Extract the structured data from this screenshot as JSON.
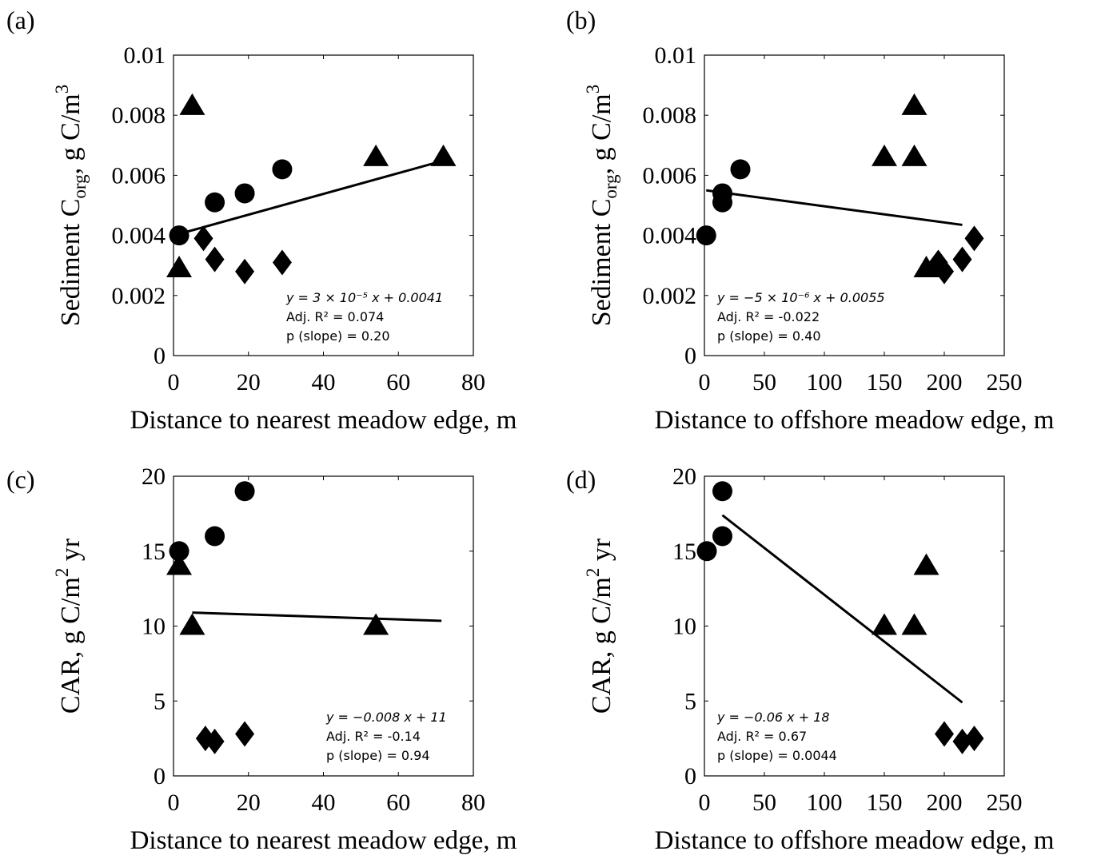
{
  "chart_data": [
    {
      "type": "scatter",
      "panel_label": "(a)",
      "xlabel": "Distance to nearest meadow edge, m",
      "ylabel": {
        "main": "Sediment C",
        "sub": "org",
        "mid": ", g C/m",
        "sup": "3",
        "tail": ""
      },
      "xlim": [
        0,
        80
      ],
      "ylim": [
        0,
        0.01
      ],
      "xticks": [
        "0",
        "20",
        "40",
        "60",
        "80"
      ],
      "yticks": [
        "0",
        "0.002",
        "0.004",
        "0.006",
        "0.008",
        "0.01"
      ],
      "series": [
        {
          "marker": "circle",
          "points": [
            [
              1.5,
              0.004
            ],
            [
              11,
              0.0051
            ],
            [
              19,
              0.0054
            ],
            [
              29,
              0.0062
            ]
          ]
        },
        {
          "marker": "triangle",
          "points": [
            [
              1.5,
              0.0029
            ],
            [
              5,
              0.0083
            ],
            [
              54,
              0.0066
            ],
            [
              72,
              0.0066
            ]
          ]
        },
        {
          "marker": "diamond",
          "points": [
            [
              8,
              0.0039
            ],
            [
              11,
              0.0032
            ],
            [
              19,
              0.0028
            ],
            [
              29,
              0.0031
            ]
          ]
        }
      ],
      "fit_line": {
        "x": [
          1.5,
          69.5
        ],
        "y": [
          0.00405,
          0.0064
        ]
      },
      "annotation": {
        "equation": "y = 3 × 10⁻⁵ x + 0.0041",
        "adj_r2_label": "Adj. R² = 0.074",
        "p_label": "p (slope) = 0.20"
      }
    },
    {
      "type": "scatter",
      "panel_label": "(b)",
      "xlabel": "Distance to offshore meadow edge, m",
      "ylabel": {
        "main": "Sediment C",
        "sub": "org",
        "mid": ", g C/m",
        "sup": "3",
        "tail": ""
      },
      "xlim": [
        0,
        250
      ],
      "ylim": [
        0,
        0.01
      ],
      "xticks": [
        "0",
        "50",
        "100",
        "150",
        "200",
        "250"
      ],
      "yticks": [
        "0",
        "0.002",
        "0.004",
        "0.006",
        "0.008",
        "0.01"
      ],
      "series": [
        {
          "marker": "circle",
          "points": [
            [
              1.5,
              0.004
            ],
            [
              15,
              0.0051
            ],
            [
              15,
              0.0054
            ],
            [
              30,
              0.0062
            ]
          ]
        },
        {
          "marker": "triangle",
          "points": [
            [
              150,
              0.0066
            ],
            [
              175,
              0.0066
            ],
            [
              175,
              0.0083
            ],
            [
              185,
              0.0029
            ]
          ]
        },
        {
          "marker": "diamond",
          "points": [
            [
              195,
              0.0031
            ],
            [
              200,
              0.0028
            ],
            [
              215,
              0.0032
            ],
            [
              225,
              0.0039
            ]
          ]
        }
      ],
      "fit_line": {
        "x": [
          1.5,
          215
        ],
        "y": [
          0.0055,
          0.00435
        ]
      },
      "annotation": {
        "equation": "y = −5 × 10⁻⁶ x + 0.0055",
        "adj_r2_label": "Adj. R² = -0.022",
        "p_label": "p (slope) = 0.40"
      }
    },
    {
      "type": "scatter",
      "panel_label": "(c)",
      "xlabel": "Distance to nearest meadow edge, m",
      "ylabel": {
        "main": "CAR, g C/m",
        "sub": "",
        "mid": "",
        "sup": "2",
        "tail": " yr"
      },
      "xlim": [
        0,
        80
      ],
      "ylim": [
        0,
        20
      ],
      "xticks": [
        "0",
        "20",
        "40",
        "60",
        "80"
      ],
      "yticks": [
        "0",
        "5",
        "10",
        "15",
        "20"
      ],
      "series": [
        {
          "marker": "circle",
          "points": [
            [
              1.5,
              15
            ],
            [
              11,
              16
            ],
            [
              19,
              19
            ]
          ]
        },
        {
          "marker": "triangle",
          "points": [
            [
              1.5,
              14
            ],
            [
              5,
              10
            ],
            [
              54,
              10
            ]
          ]
        },
        {
          "marker": "diamond",
          "points": [
            [
              8.5,
              2.5
            ],
            [
              11,
              2.3
            ],
            [
              19,
              2.8
            ]
          ]
        }
      ],
      "fit_line": {
        "x": [
          5,
          71.5
        ],
        "y": [
          10.9,
          10.35
        ]
      },
      "annotation": {
        "equation": "y = −0.008 x + 11",
        "adj_r2_label": "Adj. R² = -0.14",
        "p_label": "p (slope) = 0.94"
      }
    },
    {
      "type": "scatter",
      "panel_label": "(d)",
      "xlabel": "Distance to offshore meadow edge, m",
      "ylabel": {
        "main": "CAR, g C/m",
        "sub": "",
        "mid": "",
        "sup": "2",
        "tail": " yr"
      },
      "xlim": [
        0,
        250
      ],
      "ylim": [
        0,
        20
      ],
      "xticks": [
        "0",
        "50",
        "100",
        "150",
        "200",
        "250"
      ],
      "yticks": [
        "0",
        "5",
        "10",
        "15",
        "20"
      ],
      "series": [
        {
          "marker": "circle",
          "points": [
            [
              2,
              15
            ],
            [
              15,
              16
            ],
            [
              15,
              19
            ]
          ]
        },
        {
          "marker": "triangle",
          "points": [
            [
              150,
              10
            ],
            [
              175,
              10
            ],
            [
              185,
              14
            ]
          ]
        },
        {
          "marker": "diamond",
          "points": [
            [
              200,
              2.8
            ],
            [
              215,
              2.3
            ],
            [
              225,
              2.5
            ]
          ]
        }
      ],
      "fit_line": {
        "x": [
          15,
          215
        ],
        "y": [
          17.4,
          4.9
        ]
      },
      "annotation": {
        "equation": "y = −0.06 x + 18",
        "adj_r2_label": "Adj. R² = 0.67",
        "p_label": "p (slope) = 0.0044"
      }
    }
  ]
}
